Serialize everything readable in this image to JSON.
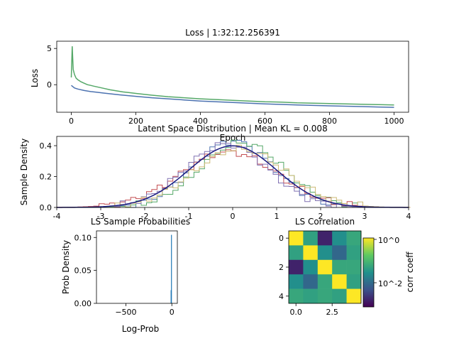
{
  "chart_data": [
    {
      "id": "loss",
      "type": "line",
      "title": "Loss | 1:32:12.256391",
      "xlabel": "Epoch",
      "ylabel": "Loss",
      "xlim": [
        -45,
        1045
      ],
      "ylim": [
        -3.8,
        6.0
      ],
      "xticks": [
        0,
        200,
        400,
        600,
        800,
        1000
      ],
      "yticks": [
        0,
        5
      ],
      "series": [
        {
          "color": "#55a868",
          "x": [
            0,
            3,
            6,
            10,
            15,
            20,
            30,
            40,
            50,
            60,
            70,
            80,
            100,
            120,
            140,
            160,
            180,
            200,
            250,
            300,
            350,
            400,
            450,
            500,
            550,
            600,
            650,
            700,
            750,
            800,
            850,
            900,
            950,
            1000
          ],
          "values": [
            1.0,
            5.3,
            2.1,
            1.4,
            0.9,
            0.7,
            0.4,
            0.2,
            0.0,
            -0.1,
            -0.2,
            -0.3,
            -0.5,
            -0.7,
            -0.85,
            -1.0,
            -1.1,
            -1.2,
            -1.45,
            -1.65,
            -1.8,
            -1.95,
            -2.05,
            -2.15,
            -2.25,
            -2.35,
            -2.4,
            -2.5,
            -2.55,
            -2.6,
            -2.65,
            -2.7,
            -2.75,
            -2.8
          ]
        },
        {
          "color": "#4c72b0",
          "x": [
            0,
            10,
            20,
            40,
            60,
            80,
            100,
            150,
            200,
            250,
            300,
            350,
            400,
            450,
            500,
            550,
            600,
            650,
            700,
            750,
            800,
            850,
            900,
            950,
            1000
          ],
          "values": [
            -0.1,
            -0.45,
            -0.6,
            -0.8,
            -0.95,
            -1.05,
            -1.15,
            -1.4,
            -1.6,
            -1.8,
            -1.95,
            -2.1,
            -2.25,
            -2.35,
            -2.45,
            -2.55,
            -2.65,
            -2.72,
            -2.8,
            -2.86,
            -2.92,
            -2.97,
            -3.02,
            -3.07,
            -3.12
          ]
        }
      ]
    },
    {
      "id": "latent",
      "type": "line",
      "title": "Latent Space Distribution | Mean KL = 0.008",
      "xlabel": "",
      "ylabel": "Sample Density",
      "xlim": [
        -4,
        4
      ],
      "ylim": [
        0,
        0.46
      ],
      "xticks": [
        -4,
        -3,
        -2,
        -1,
        0,
        1,
        2,
        3,
        4
      ],
      "yticks": [
        0.0,
        0.2,
        0.4
      ],
      "series": [
        {
          "color": "#4c72b0",
          "mu": -0.05,
          "sigma": 0.92,
          "amp": 0.43
        },
        {
          "color": "#55a868",
          "mu": 0.15,
          "sigma": 0.95,
          "amp": 0.42
        },
        {
          "color": "#c44e52",
          "mu": -0.15,
          "sigma": 1.1,
          "amp": 0.36
        },
        {
          "color": "#8172b3",
          "mu": -0.2,
          "sigma": 0.95,
          "amp": 0.41
        },
        {
          "color": "#ccb974",
          "mu": 0.1,
          "sigma": 1.05,
          "amp": 0.38
        },
        {
          "color": "#1a1a80",
          "mu": 0.0,
          "sigma": 1.0,
          "amp": 0.399
        }
      ]
    },
    {
      "id": "probs",
      "type": "bar",
      "title": "LS Sample Probabilities",
      "xlabel": "Log-Prob",
      "ylabel": "Prob Density",
      "xlim": [
        -820,
        60
      ],
      "ylim": [
        0,
        0.11
      ],
      "xticks": [
        -500,
        0
      ],
      "yticks": [
        0.0,
        0.05,
        0.1
      ],
      "bins": [
        {
          "x": -8,
          "value": 0.02
        },
        {
          "x": -4,
          "value": 0.104
        }
      ],
      "color": "#1f77b4"
    },
    {
      "id": "corr",
      "type": "heatmap",
      "title": "LS Correlation",
      "colorbar_label": "corr coeff",
      "colorbar_ticks": [
        "10^0",
        "10^-2"
      ],
      "xticks": [
        "0.0",
        "2.5"
      ],
      "yticks": [
        "0",
        "2",
        "4"
      ],
      "matrix": [
        [
          1.0,
          0.05,
          0.002,
          0.03,
          0.06
        ],
        [
          0.05,
          1.0,
          0.03,
          0.01,
          0.05
        ],
        [
          0.002,
          0.03,
          1.0,
          0.06,
          0.06
        ],
        [
          0.03,
          0.01,
          0.06,
          1.0,
          0.05
        ],
        [
          0.06,
          0.05,
          0.06,
          0.05,
          1.0
        ]
      ]
    }
  ]
}
